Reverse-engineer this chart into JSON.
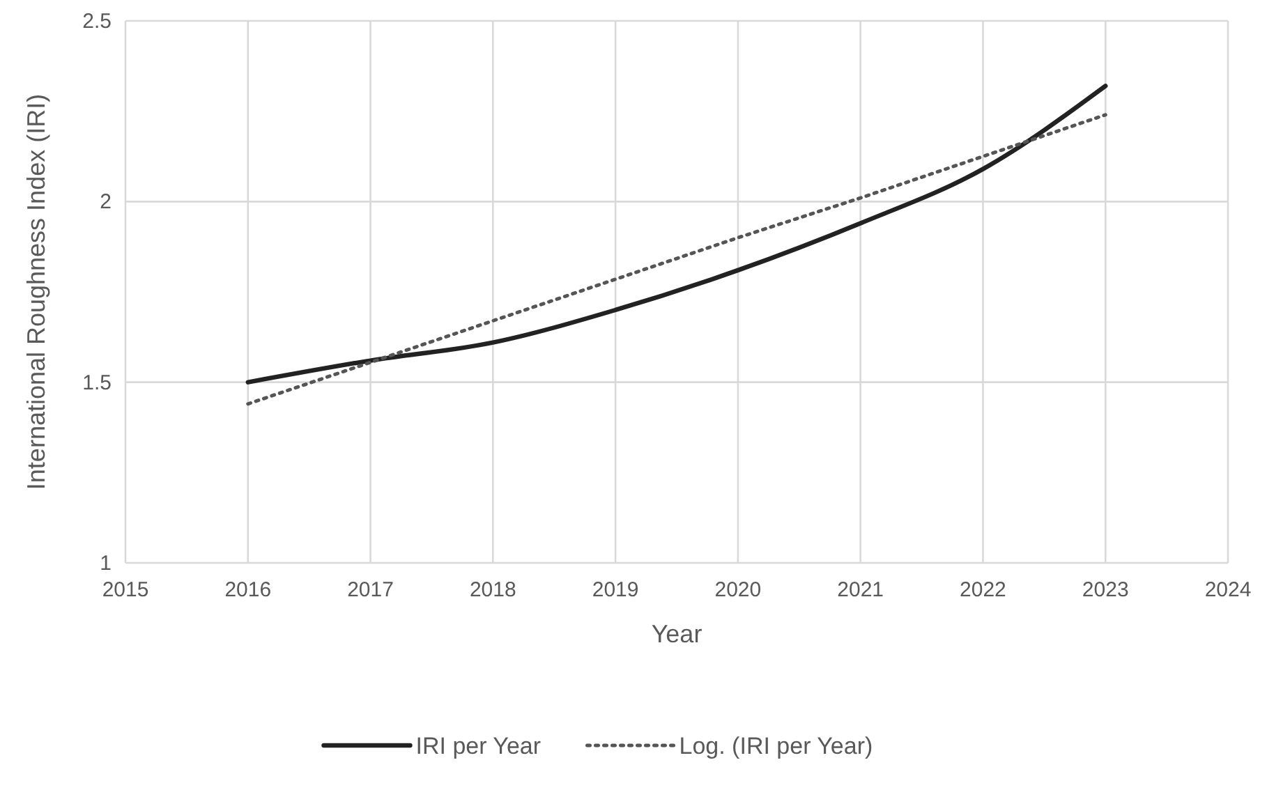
{
  "chart_data": {
    "type": "line",
    "xlabel": "Year",
    "ylabel": "International Roughness Index (IRI)",
    "x": [
      2016,
      2017,
      2018,
      2019,
      2020,
      2021,
      2022,
      2023
    ],
    "series": [
      {
        "name": "IRI per Year",
        "color": "#222222",
        "line_style": "solid",
        "values": [
          1.5,
          1.56,
          1.61,
          1.7,
          1.81,
          1.94,
          2.09,
          2.32
        ]
      },
      {
        "name": "Log. (IRI per Year)",
        "color": "#555555",
        "line_style": "dotted",
        "values": [
          1.44,
          1.555,
          1.67,
          1.785,
          1.9,
          2.01,
          2.125,
          2.24
        ]
      }
    ],
    "xlim": [
      2015,
      2024
    ],
    "xticks": [
      2015,
      2016,
      2017,
      2018,
      2019,
      2020,
      2021,
      2022,
      2023,
      2024
    ],
    "ylim": [
      1,
      2.5
    ],
    "yticks": [
      1,
      1.5,
      2,
      2.5
    ],
    "grid": true,
    "legend": "bottom",
    "marker": "none"
  }
}
